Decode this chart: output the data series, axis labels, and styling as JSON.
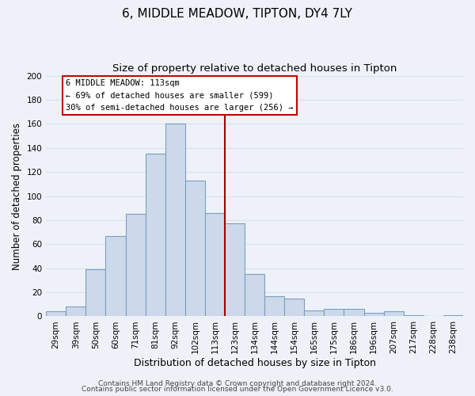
{
  "title": "6, MIDDLE MEADOW, TIPTON, DY4 7LY",
  "subtitle": "Size of property relative to detached houses in Tipton",
  "xlabel": "Distribution of detached houses by size in Tipton",
  "ylabel": "Number of detached properties",
  "bar_labels": [
    "29sqm",
    "39sqm",
    "50sqm",
    "60sqm",
    "71sqm",
    "81sqm",
    "92sqm",
    "102sqm",
    "113sqm",
    "123sqm",
    "134sqm",
    "144sqm",
    "154sqm",
    "165sqm",
    "175sqm",
    "186sqm",
    "196sqm",
    "207sqm",
    "217sqm",
    "228sqm",
    "238sqm"
  ],
  "bar_values": [
    4,
    8,
    39,
    67,
    85,
    135,
    160,
    113,
    86,
    77,
    35,
    17,
    15,
    5,
    6,
    6,
    3,
    4,
    1,
    0,
    1
  ],
  "bar_color": "#ccd9ea",
  "bar_edge_color": "#7a9ec2",
  "ylim": [
    0,
    200
  ],
  "yticks": [
    0,
    20,
    40,
    60,
    80,
    100,
    120,
    140,
    160,
    180,
    200
  ],
  "vline_x": 8.5,
  "vline_color": "#aa0000",
  "annotation_title": "6 MIDDLE MEADOW: 113sqm",
  "annotation_line1": "← 69% of detached houses are smaller (599)",
  "annotation_line2": "30% of semi-detached houses are larger (256) →",
  "annotation_box_color": "#ffffff",
  "annotation_box_edge": "#cc0000",
  "footer1": "Contains HM Land Registry data © Crown copyright and database right 2024.",
  "footer2": "Contains public sector information licensed under the Open Government Licence v3.0.",
  "background_color": "#eef2f8",
  "title_fontsize": 11,
  "subtitle_fontsize": 9.5,
  "xlabel_fontsize": 9,
  "ylabel_fontsize": 8.5,
  "tick_fontsize": 7.5,
  "footer_fontsize": 6.5,
  "grid_color": "#d8e0ec"
}
